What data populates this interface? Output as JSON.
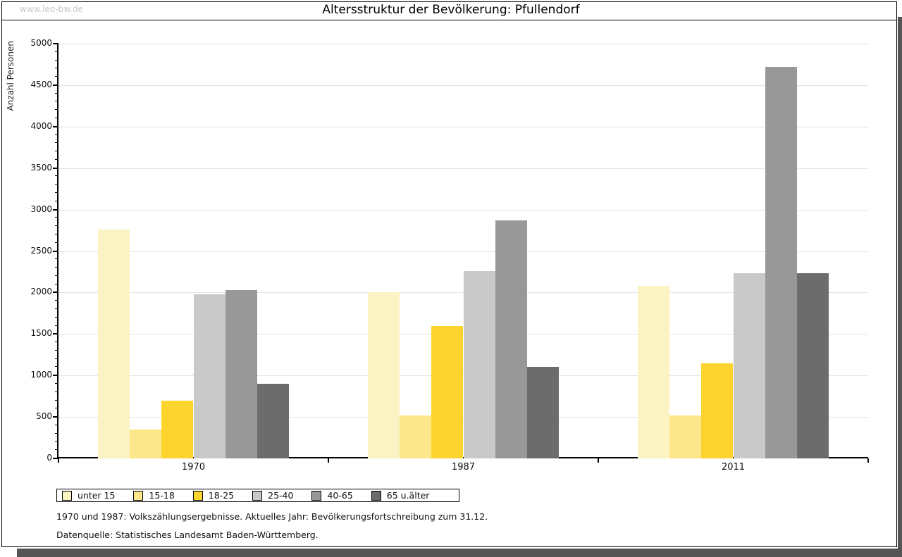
{
  "watermark": "www.leo-bw.de",
  "footnotes": {
    "line1": "1970 und 1987: Volkszählungsergebnisse. Aktuelles Jahr: Bevölkerungsfortschreibung zum 31.12.",
    "line2": "Datenquelle: Statistisches Landesamt Baden-Württemberg."
  },
  "chart_data": {
    "type": "bar",
    "title": "Altersstruktur der Bevölkerung: Pfullendorf",
    "ylabel": "Anzahl Personen",
    "xlabel": "",
    "categories": [
      "1970",
      "1987",
      "2011"
    ],
    "series": [
      {
        "name": "unter 15",
        "color": "#FBF3C4",
        "values": [
          2760,
          2000,
          2080
        ]
      },
      {
        "name": "15-18",
        "color": "#FCE88A",
        "values": [
          350,
          520,
          520
        ]
      },
      {
        "name": "18-25",
        "color": "#FCD42D",
        "values": [
          700,
          1600,
          1150
        ]
      },
      {
        "name": "25-40",
        "color": "#C9C9C9",
        "values": [
          1980,
          2260,
          2230
        ]
      },
      {
        "name": "40-65",
        "color": "#989898",
        "values": [
          2030,
          2870,
          4720
        ]
      },
      {
        "name": "65 u.älter",
        "color": "#6C6C6C",
        "values": [
          900,
          1100,
          2230
        ]
      }
    ],
    "ylim": [
      0,
      5000
    ],
    "ytick_step": 500,
    "minor_tick_step": 100,
    "grid": "horizontal",
    "legend_position": "bottom"
  }
}
